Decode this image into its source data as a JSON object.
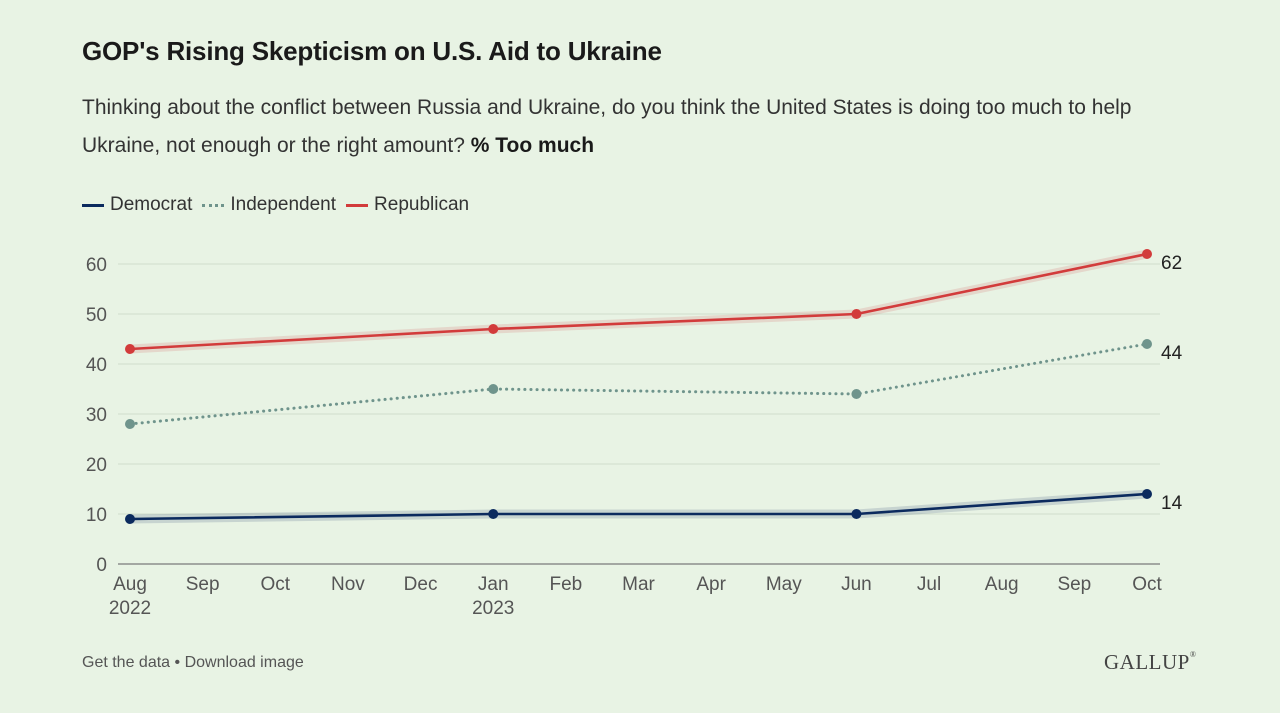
{
  "header": {
    "title": "GOP's Rising Skepticism on U.S. Aid to Ukraine",
    "subtitle": "Thinking about the conflict between Russia and Ukraine, do you think the United States is doing too much to help Ukraine, not enough or the right amount?",
    "subtitle_emphasis": "% Too much"
  },
  "footer": {
    "get_data": "Get the data",
    "separator": "•",
    "download": "Download image",
    "logo": "GALLUP",
    "logo_mark": "®"
  },
  "chart_data": {
    "type": "line",
    "title": "GOP's Rising Skepticism on U.S. Aid to Ukraine",
    "xlabel": "",
    "ylabel": "",
    "ylim": [
      0,
      60
    ],
    "y_ticks": [
      0,
      10,
      20,
      30,
      40,
      50,
      60
    ],
    "grid": true,
    "legend_position": "top-left",
    "x_ticks": [
      {
        "month": 0,
        "label": "Aug",
        "year": "2022"
      },
      {
        "month": 1,
        "label": "Sep",
        "year": ""
      },
      {
        "month": 2,
        "label": "Oct",
        "year": ""
      },
      {
        "month": 3,
        "label": "Nov",
        "year": ""
      },
      {
        "month": 4,
        "label": "Dec",
        "year": ""
      },
      {
        "month": 5,
        "label": "Jan",
        "year": "2023"
      },
      {
        "month": 6,
        "label": "Feb",
        "year": ""
      },
      {
        "month": 7,
        "label": "Mar",
        "year": ""
      },
      {
        "month": 8,
        "label": "Apr",
        "year": ""
      },
      {
        "month": 9,
        "label": "May",
        "year": ""
      },
      {
        "month": 10,
        "label": "Jun",
        "year": ""
      },
      {
        "month": 11,
        "label": "Jul",
        "year": ""
      },
      {
        "month": 12,
        "label": "Aug",
        "year": ""
      },
      {
        "month": 13,
        "label": "Sep",
        "year": ""
      },
      {
        "month": 14,
        "label": "Oct",
        "year": ""
      }
    ],
    "x": [
      "2022-08",
      "2023-01",
      "2023-06",
      "2023-10"
    ],
    "x_month_index": [
      0,
      5,
      10,
      14
    ],
    "series": [
      {
        "name": "Democrat",
        "values": [
          9,
          10,
          10,
          14
        ],
        "color": "#0b2a5e",
        "style": "solid",
        "end_label": "14"
      },
      {
        "name": "Independent",
        "values": [
          28,
          35,
          34,
          44
        ],
        "color": "#6f948c",
        "style": "dotted",
        "end_label": "44"
      },
      {
        "name": "Republican",
        "values": [
          43,
          47,
          50,
          62
        ],
        "color": "#d23b3b",
        "style": "solid",
        "end_label": "62"
      }
    ]
  }
}
